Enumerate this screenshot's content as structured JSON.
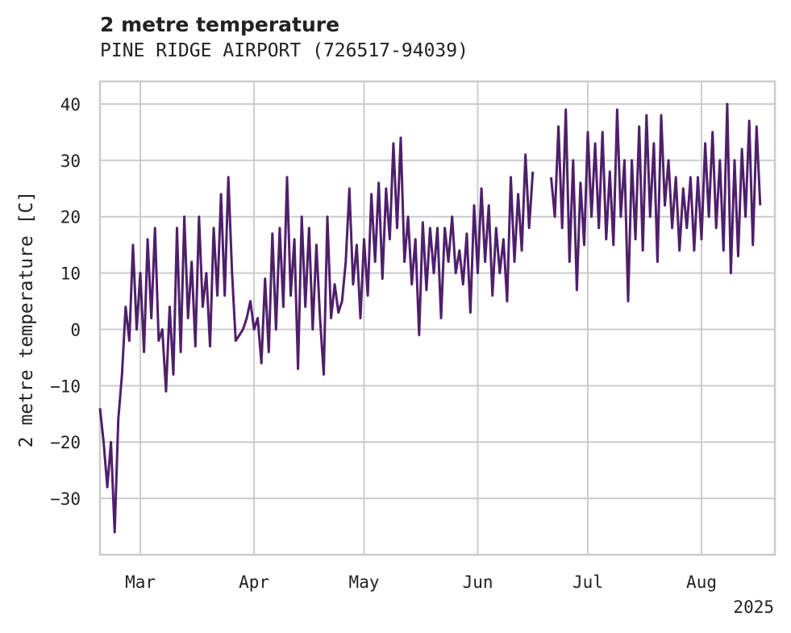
{
  "chart_data": {
    "type": "line",
    "title": "2 metre temperature",
    "subtitle": "PINE RIDGE AIRPORT (726517-94039)",
    "ylabel": "2 metre temperature [C]",
    "xlabel": "",
    "ylim": [
      -40,
      44
    ],
    "xlim": [
      "2025-02-18",
      "2025-08-21"
    ],
    "x_ticks": [
      {
        "date": "2025-03-01",
        "label": "Mar"
      },
      {
        "date": "2025-04-01",
        "label": "Apr"
      },
      {
        "date": "2025-05-01",
        "label": "May"
      },
      {
        "date": "2025-06-01",
        "label": "Jun"
      },
      {
        "date": "2025-07-01",
        "label": "Jul"
      },
      {
        "date": "2025-08-01",
        "label": "Aug"
      }
    ],
    "x_year_label": "2025",
    "y_ticks": [
      40,
      30,
      20,
      10,
      0,
      -10,
      -20,
      -30
    ],
    "y_tick_labels": [
      "40",
      "30",
      "20",
      "10",
      "0",
      "−10",
      "−20",
      "−30"
    ],
    "grid": true,
    "legend": "none",
    "series": [
      {
        "color": "#4f1f6b",
        "points": [
          [
            "2025-02-18",
            -14
          ],
          [
            "2025-02-19",
            -20
          ],
          [
            "2025-02-20",
            -28
          ],
          [
            "2025-02-21",
            -20
          ],
          [
            "2025-02-22",
            -36
          ],
          [
            "2025-02-23",
            -16
          ],
          [
            "2025-02-24",
            -8
          ],
          [
            "2025-02-25",
            4
          ],
          [
            "2025-02-26",
            -2
          ],
          [
            "2025-02-27",
            15
          ],
          [
            "2025-02-28",
            0
          ],
          [
            "2025-03-01",
            10
          ],
          [
            "2025-03-02",
            -4
          ],
          [
            "2025-03-03",
            16
          ],
          [
            "2025-03-04",
            2
          ],
          [
            "2025-03-05",
            18
          ],
          [
            "2025-03-06",
            -2
          ],
          [
            "2025-03-07",
            0
          ],
          [
            "2025-03-08",
            -11
          ],
          [
            "2025-03-09",
            4
          ],
          [
            "2025-03-10",
            -8
          ],
          [
            "2025-03-11",
            18
          ],
          [
            "2025-03-12",
            -4
          ],
          [
            "2025-03-13",
            20
          ],
          [
            "2025-03-14",
            2
          ],
          [
            "2025-03-15",
            12
          ],
          [
            "2025-03-16",
            -3
          ],
          [
            "2025-03-17",
            20
          ],
          [
            "2025-03-18",
            4
          ],
          [
            "2025-03-19",
            10
          ],
          [
            "2025-03-20",
            -3
          ],
          [
            "2025-03-21",
            18
          ],
          [
            "2025-03-22",
            6
          ],
          [
            "2025-03-23",
            24
          ],
          [
            "2025-03-24",
            6
          ],
          [
            "2025-03-25",
            27
          ],
          [
            "2025-03-26",
            10
          ],
          [
            "2025-03-27",
            -2
          ],
          [
            "2025-03-28",
            -1
          ],
          [
            "2025-03-29",
            0
          ],
          [
            "2025-03-30",
            2
          ],
          [
            "2025-03-31",
            5
          ],
          [
            "2025-04-01",
            0
          ],
          [
            "2025-04-02",
            2
          ],
          [
            "2025-04-03",
            -6
          ],
          [
            "2025-04-04",
            9
          ],
          [
            "2025-04-05",
            -4
          ],
          [
            "2025-04-06",
            17
          ],
          [
            "2025-04-07",
            0
          ],
          [
            "2025-04-08",
            18
          ],
          [
            "2025-04-09",
            4
          ],
          [
            "2025-04-10",
            27
          ],
          [
            "2025-04-11",
            6
          ],
          [
            "2025-04-12",
            16
          ],
          [
            "2025-04-13",
            -7
          ],
          [
            "2025-04-14",
            20
          ],
          [
            "2025-04-15",
            4
          ],
          [
            "2025-04-16",
            18
          ],
          [
            "2025-04-17",
            0
          ],
          [
            "2025-04-18",
            15
          ],
          [
            "2025-04-19",
            2
          ],
          [
            "2025-04-20",
            -8
          ],
          [
            "2025-04-21",
            20
          ],
          [
            "2025-04-22",
            2
          ],
          [
            "2025-04-23",
            8
          ],
          [
            "2025-04-24",
            3
          ],
          [
            "2025-04-25",
            5
          ],
          [
            "2025-04-26",
            12
          ],
          [
            "2025-04-27",
            25
          ],
          [
            "2025-04-28",
            8
          ],
          [
            "2025-04-29",
            15
          ],
          [
            "2025-04-30",
            2
          ],
          [
            "2025-05-01",
            16
          ],
          [
            "2025-05-02",
            6
          ],
          [
            "2025-05-03",
            24
          ],
          [
            "2025-05-04",
            12
          ],
          [
            "2025-05-05",
            26
          ],
          [
            "2025-05-06",
            9
          ],
          [
            "2025-05-07",
            25
          ],
          [
            "2025-05-08",
            16
          ],
          [
            "2025-05-09",
            33
          ],
          [
            "2025-05-10",
            18
          ],
          [
            "2025-05-11",
            34
          ],
          [
            "2025-05-12",
            12
          ],
          [
            "2025-05-13",
            20
          ],
          [
            "2025-05-14",
            8
          ],
          [
            "2025-05-15",
            16
          ],
          [
            "2025-05-16",
            -1
          ],
          [
            "2025-05-17",
            19
          ],
          [
            "2025-05-18",
            7
          ],
          [
            "2025-05-19",
            18
          ],
          [
            "2025-05-20",
            10
          ],
          [
            "2025-05-21",
            18
          ],
          [
            "2025-05-22",
            2
          ],
          [
            "2025-05-23",
            18
          ],
          [
            "2025-05-24",
            12
          ],
          [
            "2025-05-25",
            20
          ],
          [
            "2025-05-26",
            10
          ],
          [
            "2025-05-27",
            14
          ],
          [
            "2025-05-28",
            8
          ],
          [
            "2025-05-29",
            17
          ],
          [
            "2025-05-30",
            3
          ],
          [
            "2025-05-31",
            22
          ],
          [
            "2025-06-01",
            10
          ],
          [
            "2025-06-02",
            25
          ],
          [
            "2025-06-03",
            12
          ],
          [
            "2025-06-04",
            22
          ],
          [
            "2025-06-05",
            6
          ],
          [
            "2025-06-06",
            18
          ],
          [
            "2025-06-07",
            10
          ],
          [
            "2025-06-08",
            16
          ],
          [
            "2025-06-09",
            5
          ],
          [
            "2025-06-10",
            27
          ],
          [
            "2025-06-11",
            12
          ],
          [
            "2025-06-12",
            24
          ],
          [
            "2025-06-13",
            14
          ],
          [
            "2025-06-14",
            31
          ],
          [
            "2025-06-15",
            18
          ],
          [
            "2025-06-16",
            28
          ],
          [
            "2025-06-21",
            27
          ],
          [
            "2025-06-22",
            20
          ],
          [
            "2025-06-23",
            36
          ],
          [
            "2025-06-24",
            18
          ],
          [
            "2025-06-25",
            39
          ],
          [
            "2025-06-26",
            12
          ],
          [
            "2025-06-27",
            30
          ],
          [
            "2025-06-28",
            7
          ],
          [
            "2025-06-29",
            26
          ],
          [
            "2025-06-30",
            15
          ],
          [
            "2025-07-01",
            35
          ],
          [
            "2025-07-02",
            20
          ],
          [
            "2025-07-03",
            33
          ],
          [
            "2025-07-04",
            18
          ],
          [
            "2025-07-05",
            35
          ],
          [
            "2025-07-06",
            16
          ],
          [
            "2025-07-07",
            28
          ],
          [
            "2025-07-08",
            15
          ],
          [
            "2025-07-09",
            39
          ],
          [
            "2025-07-10",
            20
          ],
          [
            "2025-07-11",
            30
          ],
          [
            "2025-07-12",
            5
          ],
          [
            "2025-07-13",
            30
          ],
          [
            "2025-07-14",
            16
          ],
          [
            "2025-07-15",
            36
          ],
          [
            "2025-07-16",
            14
          ],
          [
            "2025-07-17",
            38
          ],
          [
            "2025-07-18",
            20
          ],
          [
            "2025-07-19",
            33
          ],
          [
            "2025-07-20",
            12
          ],
          [
            "2025-07-21",
            38
          ],
          [
            "2025-07-22",
            22
          ],
          [
            "2025-07-23",
            30
          ],
          [
            "2025-07-24",
            18
          ],
          [
            "2025-07-25",
            27
          ],
          [
            "2025-07-26",
            14
          ],
          [
            "2025-07-27",
            25
          ],
          [
            "2025-07-28",
            18
          ],
          [
            "2025-07-29",
            27
          ],
          [
            "2025-07-30",
            14
          ],
          [
            "2025-07-31",
            27
          ],
          [
            "2025-08-01",
            16
          ],
          [
            "2025-08-02",
            33
          ],
          [
            "2025-08-03",
            20
          ],
          [
            "2025-08-04",
            35
          ],
          [
            "2025-08-05",
            18
          ],
          [
            "2025-08-06",
            30
          ],
          [
            "2025-08-07",
            14
          ],
          [
            "2025-08-08",
            40
          ],
          [
            "2025-08-09",
            10
          ],
          [
            "2025-08-10",
            30
          ],
          [
            "2025-08-11",
            13
          ],
          [
            "2025-08-12",
            32
          ],
          [
            "2025-08-13",
            20
          ],
          [
            "2025-08-14",
            37
          ],
          [
            "2025-08-15",
            15
          ],
          [
            "2025-08-16",
            36
          ],
          [
            "2025-08-17",
            22
          ]
        ]
      }
    ]
  }
}
